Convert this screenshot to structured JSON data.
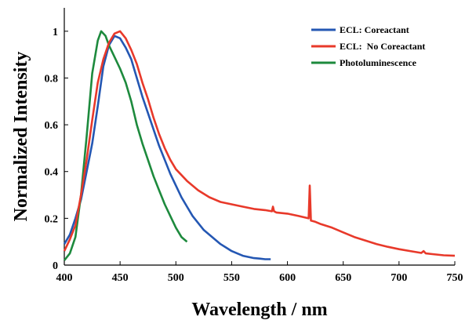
{
  "chart_data": {
    "type": "line",
    "xlabel": "Wavelength / nm",
    "ylabel": "Normalized Intensity",
    "xlim": [
      400,
      750
    ],
    "ylim": [
      0,
      1.1
    ],
    "x_ticks": [
      "400",
      "450",
      "500",
      "550",
      "600",
      "650",
      "700",
      "750"
    ],
    "y_ticks": [
      "0",
      "0.2",
      "0.4",
      "0.6",
      "0.8",
      "1"
    ],
    "x_tick_values": [
      400,
      450,
      500,
      550,
      600,
      650,
      700,
      750
    ],
    "y_tick_values": [
      0,
      0.2,
      0.4,
      0.6,
      0.8,
      1.0
    ],
    "grid": false,
    "legend_position": "top-right",
    "series": [
      {
        "name": "ECL: Coreactant",
        "color": "#2457b3",
        "points": [
          [
            400,
            0.09
          ],
          [
            405,
            0.13
          ],
          [
            410,
            0.2
          ],
          [
            415,
            0.28
          ],
          [
            420,
            0.4
          ],
          [
            425,
            0.52
          ],
          [
            430,
            0.68
          ],
          [
            435,
            0.85
          ],
          [
            440,
            0.94
          ],
          [
            445,
            0.98
          ],
          [
            450,
            0.97
          ],
          [
            455,
            0.93
          ],
          [
            460,
            0.88
          ],
          [
            465,
            0.8
          ],
          [
            470,
            0.72
          ],
          [
            475,
            0.65
          ],
          [
            480,
            0.58
          ],
          [
            485,
            0.51
          ],
          [
            490,
            0.45
          ],
          [
            495,
            0.39
          ],
          [
            500,
            0.34
          ],
          [
            505,
            0.29
          ],
          [
            510,
            0.25
          ],
          [
            515,
            0.21
          ],
          [
            520,
            0.18
          ],
          [
            525,
            0.15
          ],
          [
            530,
            0.13
          ],
          [
            535,
            0.11
          ],
          [
            540,
            0.09
          ],
          [
            545,
            0.075
          ],
          [
            550,
            0.06
          ],
          [
            555,
            0.05
          ],
          [
            560,
            0.04
          ],
          [
            565,
            0.035
          ],
          [
            570,
            0.03
          ],
          [
            575,
            0.028
          ],
          [
            580,
            0.025
          ],
          [
            585,
            0.025
          ]
        ]
      },
      {
        "name": "ECL:  No Coreactant",
        "color": "#e8392a",
        "points": [
          [
            400,
            0.06
          ],
          [
            405,
            0.11
          ],
          [
            410,
            0.17
          ],
          [
            415,
            0.3
          ],
          [
            420,
            0.45
          ],
          [
            425,
            0.62
          ],
          [
            430,
            0.78
          ],
          [
            435,
            0.88
          ],
          [
            440,
            0.95
          ],
          [
            445,
            0.99
          ],
          [
            450,
            1.0
          ],
          [
            455,
            0.97
          ],
          [
            460,
            0.92
          ],
          [
            465,
            0.86
          ],
          [
            470,
            0.78
          ],
          [
            475,
            0.71
          ],
          [
            480,
            0.63
          ],
          [
            485,
            0.56
          ],
          [
            490,
            0.5
          ],
          [
            495,
            0.45
          ],
          [
            500,
            0.41
          ],
          [
            510,
            0.36
          ],
          [
            520,
            0.32
          ],
          [
            530,
            0.29
          ],
          [
            540,
            0.27
          ],
          [
            550,
            0.26
          ],
          [
            560,
            0.25
          ],
          [
            570,
            0.24
          ],
          [
            580,
            0.235
          ],
          [
            586,
            0.23
          ],
          [
            587,
            0.25
          ],
          [
            588,
            0.23
          ],
          [
            590,
            0.225
          ],
          [
            600,
            0.22
          ],
          [
            610,
            0.21
          ],
          [
            619,
            0.2
          ],
          [
            620,
            0.34
          ],
          [
            621,
            0.19
          ],
          [
            625,
            0.185
          ],
          [
            630,
            0.175
          ],
          [
            640,
            0.16
          ],
          [
            650,
            0.14
          ],
          [
            660,
            0.12
          ],
          [
            670,
            0.105
          ],
          [
            680,
            0.09
          ],
          [
            690,
            0.078
          ],
          [
            700,
            0.068
          ],
          [
            710,
            0.06
          ],
          [
            720,
            0.052
          ],
          [
            722,
            0.06
          ],
          [
            724,
            0.05
          ],
          [
            730,
            0.047
          ],
          [
            740,
            0.042
          ],
          [
            750,
            0.04
          ]
        ]
      },
      {
        "name": "Photoluminescence",
        "color": "#1d8a3d",
        "points": [
          [
            400,
            0.02
          ],
          [
            405,
            0.05
          ],
          [
            410,
            0.12
          ],
          [
            415,
            0.3
          ],
          [
            420,
            0.55
          ],
          [
            425,
            0.82
          ],
          [
            430,
            0.96
          ],
          [
            433,
            1.0
          ],
          [
            437,
            0.98
          ],
          [
            440,
            0.94
          ],
          [
            445,
            0.89
          ],
          [
            450,
            0.84
          ],
          [
            455,
            0.78
          ],
          [
            460,
            0.7
          ],
          [
            465,
            0.6
          ],
          [
            470,
            0.52
          ],
          [
            475,
            0.45
          ],
          [
            480,
            0.38
          ],
          [
            485,
            0.32
          ],
          [
            490,
            0.26
          ],
          [
            495,
            0.21
          ],
          [
            500,
            0.16
          ],
          [
            505,
            0.12
          ],
          [
            510,
            0.1
          ]
        ]
      }
    ]
  }
}
